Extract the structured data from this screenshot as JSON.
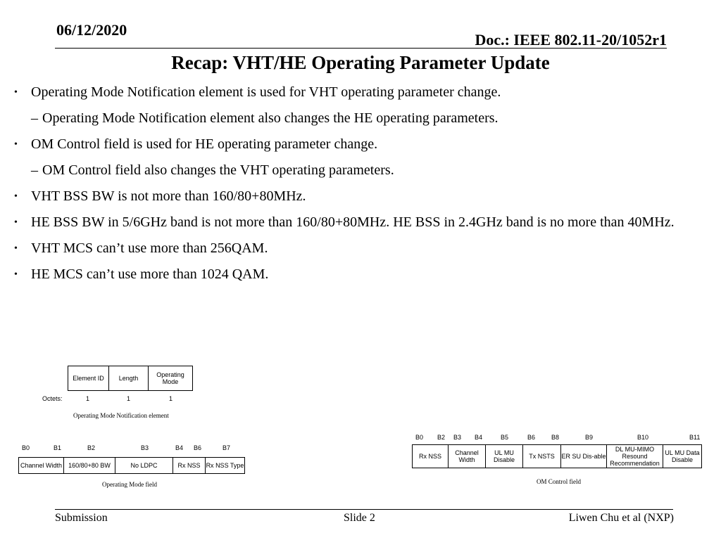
{
  "header": {
    "date": "06/12/2020",
    "doc": "Doc.: IEEE 802.11-20/1052r1"
  },
  "title": "Recap: VHT/HE Operating Parameter Update",
  "bullets": [
    "Operating Mode Notification element is used for VHT operating parameter change.",
    "Operating Mode Notification element also changes the HE operating parameters.",
    "OM Control field is used for HE operating parameter change.",
    "OM Control field also changes the VHT operating parameters.",
    "VHT BSS BW is not more than 160/80+80MHz.",
    "HE BSS BW in 5/6GHz band is not more than 160/80+80MHz. HE BSS in 2.4GHz band is no more than 40MHz.",
    "VHT MCS can’t use more than 256QAM.",
    "HE MCS can’t use more than 1024 QAM."
  ],
  "omn": {
    "fields": [
      "Element ID",
      "Length",
      "Operating Mode"
    ],
    "octets_label": "Octets:",
    "octets": [
      "1",
      "1",
      "1"
    ],
    "caption": "Operating Mode Notification element"
  },
  "omf": {
    "bits": [
      "B0",
      "B1",
      "B2",
      "B3",
      "B4",
      "B6",
      "B7"
    ],
    "fields": [
      "Channel Width",
      "160/80+80 BW",
      "No LDPC",
      "Rx NSS",
      "Rx NSS Type"
    ],
    "caption": "Operating Mode field"
  },
  "omc": {
    "bits": [
      "B0",
      "B2",
      "B3",
      "B4",
      "B5",
      "B6",
      "B8",
      "B9",
      "B10",
      "B11"
    ],
    "fields": [
      "Rx NSS",
      "Channel Width",
      "UL MU Disable",
      "Tx NSTS",
      "ER SU Dis-able",
      "DL MU-MIMO Resound Recommendation",
      "UL MU Data Disable"
    ],
    "caption": "OM Control field"
  },
  "footer": {
    "left": "Submission",
    "center": "Slide 2",
    "right": "Liwen Chu et al (NXP)"
  }
}
